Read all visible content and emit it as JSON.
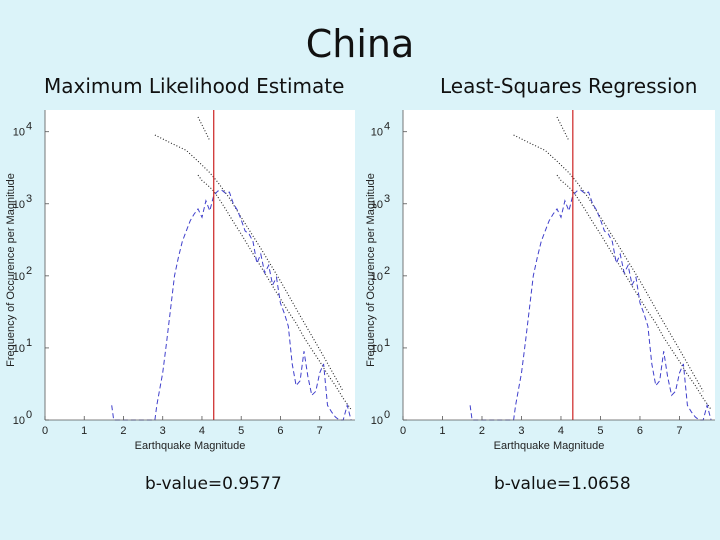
{
  "slide": {
    "title": "China"
  },
  "panels": [
    {
      "subtitle": "Maximum Likelihood Estimate",
      "bvalue_text": "b-value=0.9577"
    },
    {
      "subtitle": "Least-Squares Regression",
      "bvalue_text": "b-value=1.0658"
    }
  ],
  "chart_data": [
    {
      "type": "line",
      "title": "Maximum Likelihood Estimate",
      "xlabel": "Earthquake Magnitude",
      "ylabel": "Frequency of Occurence per Magnitude",
      "yscale": "log",
      "xlim": [
        0,
        7.9
      ],
      "ylim": [
        1,
        20000
      ],
      "x_ticks": [
        "0",
        "1",
        "2",
        "3",
        "4",
        "5",
        "6",
        "7"
      ],
      "y_ticks": [
        "10^0",
        "10^1",
        "10^2",
        "10^3",
        "10^4"
      ],
      "grid": false,
      "vline_x": 4.3,
      "series": [
        {
          "style": "dotted",
          "color": "#222222",
          "x": [
            3.9,
            4.0,
            4.1,
            4.2,
            4.3,
            4.4,
            4.6,
            4.8,
            5.0,
            5.2,
            5.4,
            5.6,
            5.8,
            6.0,
            6.2,
            6.4,
            6.6,
            6.8,
            7.0,
            7.2,
            7.4,
            7.6,
            7.8
          ],
          "y": [
            2500,
            2100,
            1900,
            1700,
            1500,
            1250,
            850,
            560,
            380,
            250,
            165,
            110,
            72,
            48,
            32,
            22,
            14,
            9.5,
            6.5,
            4.3,
            3,
            2,
            1.4
          ]
        },
        {
          "style": "dotted",
          "color": "#222222",
          "x": [
            2.8,
            3.2,
            3.6,
            3.9,
            4.2,
            4.4,
            4.7,
            5.0,
            5.5,
            6.0,
            6.5,
            7.0,
            7.6
          ],
          "y": [
            9000,
            7000,
            5500,
            3900,
            2700,
            2000,
            1200,
            650,
            240,
            85,
            28,
            9.5,
            2.5
          ]
        },
        {
          "style": "dotted",
          "color": "#222222",
          "x": [
            3.9,
            4.05,
            4.2
          ],
          "y": [
            16000,
            11000,
            7500
          ]
        },
        {
          "style": "dashed",
          "color": "#4040cc",
          "x": [
            1.7,
            1.75,
            2.8,
            2.85,
            3.0,
            3.1,
            3.2,
            3.3,
            3.4,
            3.5,
            3.6,
            3.7,
            3.8,
            3.9,
            4.0,
            4.1,
            4.2,
            4.3,
            4.4,
            4.5,
            4.6,
            4.7,
            4.8,
            4.9,
            5.0,
            5.1,
            5.2,
            5.3,
            5.4,
            5.5,
            5.6,
            5.7,
            5.8,
            5.9,
            6.0,
            6.1,
            6.2,
            6.3,
            6.4,
            6.5,
            6.6,
            6.7,
            6.8,
            6.9,
            7.0,
            7.1,
            7.2,
            7.3,
            7.4,
            7.5,
            7.6,
            7.7,
            7.8
          ],
          "y": [
            1.6,
            1.0,
            1.0,
            1.6,
            4.5,
            12,
            35,
            100,
            180,
            300,
            420,
            580,
            720,
            850,
            650,
            1100,
            800,
            1300,
            1500,
            1550,
            1400,
            1450,
            1000,
            820,
            600,
            420,
            380,
            300,
            150,
            200,
            110,
            140,
            75,
            95,
            42,
            30,
            20,
            6,
            3,
            3.5,
            9,
            4,
            2.2,
            2.5,
            4.5,
            6,
            1.6,
            1.3,
            1.1,
            1.0,
            1.0,
            1.6,
            1.0
          ]
        }
      ]
    },
    {
      "type": "line",
      "title": "Least-Squares Regression",
      "xlabel": "Earthquake Magnitude",
      "ylabel": "Frequency of Occurence per Magnitude",
      "yscale": "log",
      "xlim": [
        0,
        7.9
      ],
      "ylim": [
        1,
        20000
      ],
      "x_ticks": [
        "0",
        "1",
        "2",
        "3",
        "4",
        "5",
        "6",
        "7"
      ],
      "y_ticks": [
        "10^0",
        "10^1",
        "10^2",
        "10^3",
        "10^4"
      ],
      "grid": false,
      "vline_x": 4.3,
      "series": [
        {
          "style": "dotted",
          "color": "#222222",
          "x": [
            3.9,
            4.0,
            4.1,
            4.2,
            4.3,
            4.4,
            4.6,
            4.8,
            5.0,
            5.2,
            5.4,
            5.6,
            5.8,
            6.0,
            6.2,
            6.4,
            6.6,
            6.8,
            7.0,
            7.2,
            7.4,
            7.6,
            7.8
          ],
          "y": [
            2500,
            2100,
            1900,
            1700,
            1500,
            1250,
            850,
            560,
            380,
            250,
            165,
            110,
            72,
            48,
            32,
            22,
            14,
            9.5,
            6.5,
            4.3,
            3,
            2,
            1.4
          ]
        },
        {
          "style": "dotted",
          "color": "#222222",
          "x": [
            2.8,
            3.2,
            3.6,
            3.9,
            4.2,
            4.4,
            4.7,
            5.0,
            5.5,
            6.0,
            6.5,
            7.0,
            7.6
          ],
          "y": [
            9000,
            7000,
            5500,
            3900,
            2700,
            2000,
            1200,
            650,
            240,
            85,
            28,
            9.5,
            2.5
          ]
        },
        {
          "style": "dotted",
          "color": "#222222",
          "x": [
            3.9,
            4.05,
            4.2
          ],
          "y": [
            16000,
            11000,
            7500
          ]
        },
        {
          "style": "dashed",
          "color": "#4040cc",
          "x": [
            1.7,
            1.75,
            2.8,
            2.85,
            3.0,
            3.1,
            3.2,
            3.3,
            3.4,
            3.5,
            3.6,
            3.7,
            3.8,
            3.9,
            4.0,
            4.1,
            4.2,
            4.3,
            4.4,
            4.5,
            4.6,
            4.7,
            4.8,
            4.9,
            5.0,
            5.1,
            5.2,
            5.3,
            5.4,
            5.5,
            5.6,
            5.7,
            5.8,
            5.9,
            6.0,
            6.1,
            6.2,
            6.3,
            6.4,
            6.5,
            6.6,
            6.7,
            6.8,
            6.9,
            7.0,
            7.1,
            7.2,
            7.3,
            7.4,
            7.5,
            7.6,
            7.7,
            7.8
          ],
          "y": [
            1.6,
            1.0,
            1.0,
            1.6,
            4.5,
            12,
            35,
            100,
            180,
            300,
            420,
            580,
            720,
            850,
            650,
            1100,
            800,
            1300,
            1500,
            1550,
            1400,
            1450,
            1000,
            820,
            600,
            420,
            380,
            300,
            150,
            200,
            110,
            140,
            75,
            95,
            42,
            30,
            20,
            6,
            3,
            3.5,
            9,
            4,
            2.2,
            2.5,
            4.5,
            6,
            1.6,
            1.3,
            1.1,
            1.0,
            1.0,
            1.6,
            1.0
          ]
        }
      ]
    }
  ]
}
